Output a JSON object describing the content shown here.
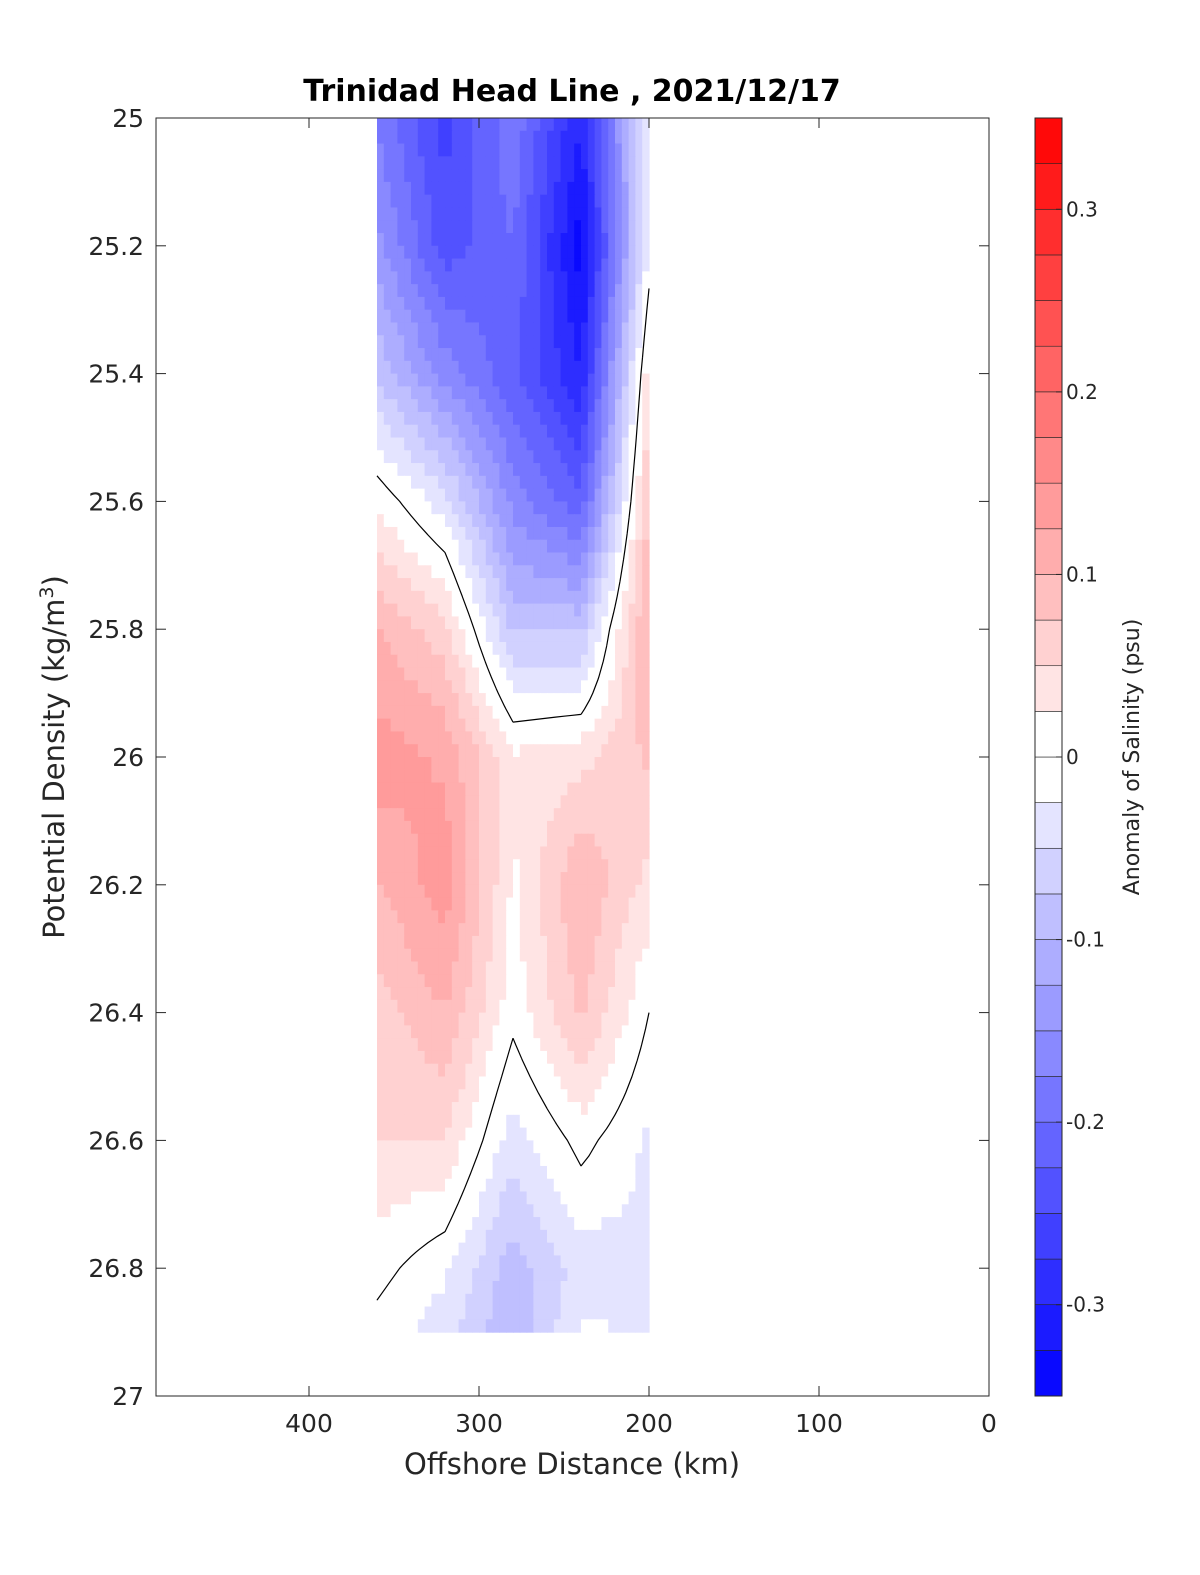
{
  "chart_data": {
    "type": "heatmap",
    "subtype": "filled-contour-section",
    "title": "Trinidad Head Line , 2021/12/17",
    "xlabel": "Offshore Distance (km)",
    "ylabel_main": "Potential Density (kg/m",
    "ylabel_sup": "3",
    "ylabel_tail": ")",
    "xlim": [
      490,
      0
    ],
    "x_reversed": true,
    "ylim": [
      25,
      27
    ],
    "y_reversed": true,
    "xticks": [
      400,
      300,
      200,
      100,
      0
    ],
    "xtick_labels": [
      "400",
      "300",
      "200",
      "100",
      "0"
    ],
    "yticks": [
      25,
      25.2,
      25.4,
      25.6,
      25.8,
      26,
      26.2,
      26.4,
      26.6,
      26.8,
      27
    ],
    "ytick_labels": [
      "25",
      "25.2",
      "25.4",
      "25.6",
      "25.8",
      "26",
      "26.2",
      "26.4",
      "26.6",
      "26.8",
      "27"
    ],
    "data_extent": {
      "x": [
        200,
        360
      ],
      "y": [
        25,
        26.9
      ]
    },
    "stations_x": [
      360,
      320,
      280,
      240,
      200
    ],
    "density_levels": [
      25.0,
      25.2,
      25.4,
      25.6,
      25.8,
      26.0,
      26.2,
      26.4,
      26.6,
      26.8,
      26.9
    ],
    "anomaly_grid_note": "rows = density_levels, columns = stations_x, values in psu",
    "anomaly_grid": [
      [
        -0.18,
        -0.26,
        -0.18,
        -0.3,
        -0.02
      ],
      [
        -0.14,
        -0.24,
        -0.2,
        -0.34,
        -0.02
      ],
      [
        -0.08,
        -0.16,
        -0.22,
        -0.3,
        0.04
      ],
      [
        0.02,
        -0.04,
        -0.16,
        -0.22,
        0.08
      ],
      [
        0.1,
        0.06,
        -0.08,
        -0.08,
        0.11
      ],
      [
        0.14,
        0.12,
        0.03,
        0.04,
        0.08
      ],
      [
        0.1,
        0.14,
        0.02,
        0.1,
        0.04
      ],
      [
        0.06,
        0.1,
        0.01,
        0.08,
        0.0
      ],
      [
        0.05,
        0.05,
        -0.04,
        0.01,
        -0.03
      ],
      [
        0.01,
        -0.02,
        -0.09,
        -0.04,
        -0.03
      ],
      [
        -0.01,
        -0.04,
        -0.1,
        -0.02,
        -0.03
      ]
    ],
    "zero_contour_color": "#000000",
    "colorbar": {
      "label": "Anomaly of Salinity (psu)",
      "range": [
        -0.35,
        0.35
      ],
      "levels": 28,
      "tick_values": [
        0.3,
        0.2,
        0.1,
        0,
        -0.1,
        -0.2,
        -0.3
      ],
      "tick_labels": [
        "0.3",
        "0.2",
        "0.1",
        "0",
        "-0.1",
        "-0.2",
        "-0.3"
      ],
      "colormap": "blue-white-red",
      "negative_color": "#0000ff",
      "positive_color": "#ff0000",
      "zero_color": "#ffffff"
    }
  }
}
